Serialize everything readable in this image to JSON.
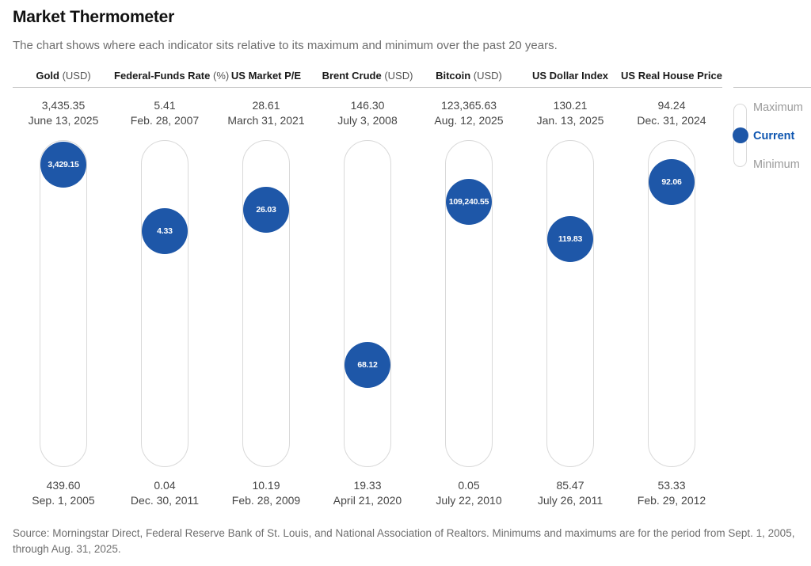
{
  "title": "Market Thermometer",
  "subtitle": "The chart shows where each indicator sits relative to its maximum and minimum over the past 20 years.",
  "legend": {
    "maximum": "Maximum",
    "current": "Current",
    "minimum": "Minimum"
  },
  "source": "Source: Morningstar Direct, Federal Reserve Bank of St. Louis, and National Association of Realtors. Minimums and maximums are for the period from Sept. 1, 2005, through Aug. 31, 2025.",
  "colors": {
    "dot_blue": "#1e57a8",
    "legend_current_blue": "#0d55b0",
    "tube_outline": "#d9d9d9",
    "muted_text": "#6e6e6e"
  },
  "chart_data": {
    "type": "thermometer",
    "period": "Sept. 1, 2005 through Aug. 31, 2025",
    "indicators": [
      {
        "name": "Gold",
        "unit": "(USD)",
        "max": "3,435.35",
        "max_value": 3435.35,
        "max_date": "June 13, 2025",
        "current": "3,429.15",
        "current_value": 3429.15,
        "min": "439.60",
        "min_value": 439.6,
        "min_date": "Sep. 1, 2005",
        "dot_pct": 7.3
      },
      {
        "name": "Federal-Funds Rate",
        "unit": "(%)",
        "max": "5.41",
        "max_value": 5.41,
        "max_date": "Feb. 28, 2007",
        "current": "4.33",
        "current_value": 4.33,
        "min": "0.04",
        "min_value": 0.04,
        "min_date": "Dec. 30, 2011",
        "dot_pct": 27.8
      },
      {
        "name": "US Market P/E",
        "unit": "",
        "max": "28.61",
        "max_value": 28.61,
        "max_date": "March 31, 2021",
        "current": "26.03",
        "current_value": 26.03,
        "min": "10.19",
        "min_value": 10.19,
        "min_date": "Feb. 28, 2009",
        "dot_pct": 21.1
      },
      {
        "name": "Brent Crude",
        "unit": "(USD)",
        "max": "146.30",
        "max_value": 146.3,
        "max_date": "July 3, 2008",
        "current": "68.12",
        "current_value": 68.12,
        "min": "19.33",
        "min_value": 19.33,
        "min_date": "April 21, 2020",
        "dot_pct": 69.0
      },
      {
        "name": "Bitcoin",
        "unit": "(USD)",
        "max": "123,365.63",
        "max_value": 123365.63,
        "max_date": "Aug. 12, 2025",
        "current": "109,240.55",
        "current_value": 109240.55,
        "min": "0.05",
        "min_value": 0.05,
        "min_date": "July 22, 2010",
        "dot_pct": 18.9
      },
      {
        "name": "US Dollar Index",
        "unit": "",
        "max": "130.21",
        "max_value": 130.21,
        "max_date": "Jan. 13, 2025",
        "current": "119.83",
        "current_value": 119.83,
        "min": "85.47",
        "min_value": 85.47,
        "min_date": "July 26, 2011",
        "dot_pct": 30.3
      },
      {
        "name": "US Real House Price",
        "unit": "",
        "max": "94.24",
        "max_value": 94.24,
        "max_date": "Dec. 31, 2024",
        "current": "92.06",
        "current_value": 92.06,
        "min": "53.33",
        "min_value": 53.33,
        "min_date": "Feb. 29, 2012",
        "dot_pct": 12.6
      }
    ]
  }
}
